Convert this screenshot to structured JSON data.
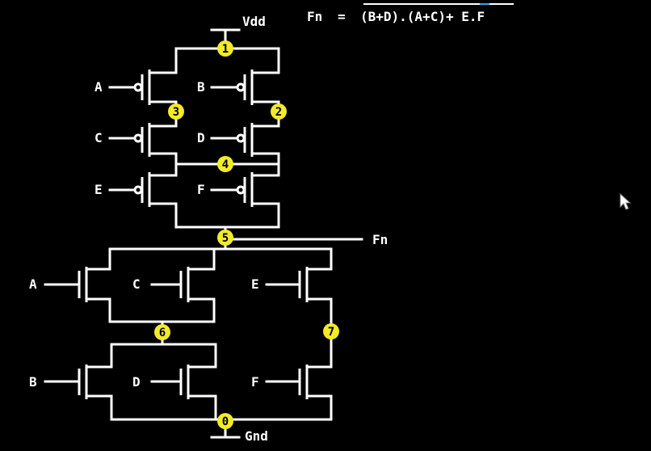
{
  "supply": {
    "vdd": "Vdd",
    "gnd": "Gnd"
  },
  "output": {
    "label": "Fn"
  },
  "equation": {
    "lhs": "Fn",
    "eq": "=",
    "rhs": "(B+D).(A+C)+ E.F"
  },
  "pmos": [
    {
      "gate": "A"
    },
    {
      "gate": "B"
    },
    {
      "gate": "C"
    },
    {
      "gate": "D"
    },
    {
      "gate": "E"
    },
    {
      "gate": "F"
    }
  ],
  "nmos": [
    {
      "gate": "A"
    },
    {
      "gate": "C"
    },
    {
      "gate": "E"
    },
    {
      "gate": "B"
    },
    {
      "gate": "D"
    },
    {
      "gate": "F"
    }
  ],
  "nodes": [
    "0",
    "1",
    "2",
    "3",
    "4",
    "5",
    "6",
    "7"
  ],
  "colors": {
    "background": "#000000",
    "wire": "#ffffff",
    "node": "#f2ea2a",
    "overbar": "#ffffff",
    "overbar_accent": "#3aa0e6"
  }
}
